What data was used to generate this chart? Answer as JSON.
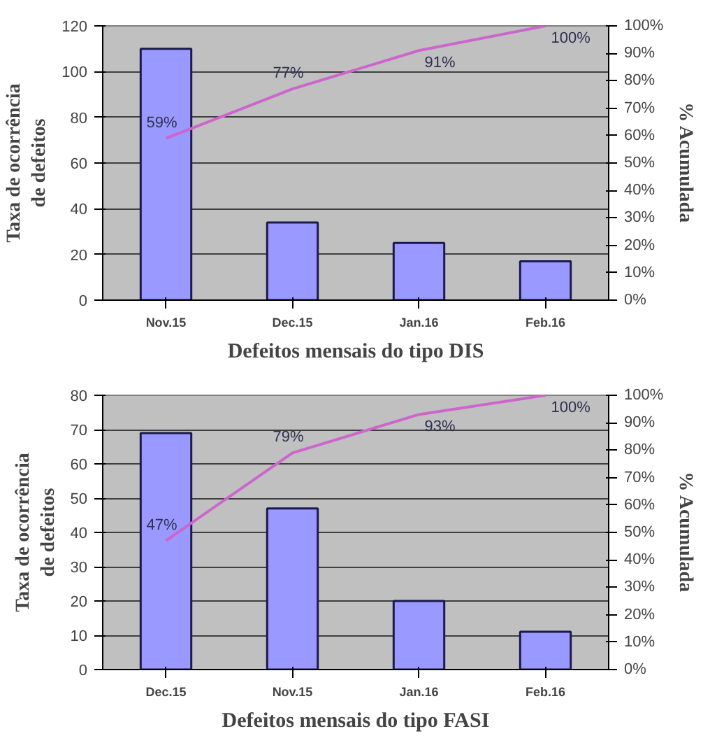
{
  "chart_data": [
    {
      "type": "bar",
      "categories": [
        "Nov.15",
        "Dec.15",
        "Jan.16",
        "Feb.16"
      ],
      "xlabel": "Defeitos mensais do tipo DIS",
      "ylabel": "Taxa de ocorrência\nde defeitos",
      "y2label": "% Acumulada",
      "ylim": [
        0,
        120
      ],
      "yticks": [
        0,
        20,
        40,
        60,
        80,
        100,
        120
      ],
      "y2lim": [
        0,
        100
      ],
      "y2ticks": [
        {
          "value": 0,
          "label": "0%"
        },
        {
          "value": 10,
          "label": "10%"
        },
        {
          "value": 20,
          "label": "20%"
        },
        {
          "value": 30,
          "label": "30%"
        },
        {
          "value": 40,
          "label": "40%"
        },
        {
          "value": 50,
          "label": "50%"
        },
        {
          "value": 60,
          "label": "60%"
        },
        {
          "value": 70,
          "label": "70%"
        },
        {
          "value": 80,
          "label": "80%"
        },
        {
          "value": 90,
          "label": "90%"
        },
        {
          "value": 100,
          "label": "100%"
        }
      ],
      "grid": "y",
      "series": [
        {
          "color": "#9999ff",
          "values": [
            110,
            34,
            25,
            17
          ]
        },
        {
          "type": "line",
          "axis": "y2",
          "color": "#cc66cc",
          "values": [
            59,
            77,
            91,
            100
          ],
          "value_labels": [
            "59%",
            "77%",
            "91%",
            "100%"
          ]
        }
      ]
    },
    {
      "type": "bar",
      "categories": [
        "Dec.15",
        "Nov.15",
        "Jan.16",
        "Feb.16"
      ],
      "xlabel": "Defeitos mensais do tipo FASI",
      "ylabel": "Taxa de ocorrência\nde defeitos",
      "y2label": "% Acumulada",
      "ylim": [
        0,
        80
      ],
      "yticks": [
        0,
        10,
        20,
        30,
        40,
        50,
        60,
        70,
        80
      ],
      "y2lim": [
        0,
        100
      ],
      "y2ticks": [
        {
          "value": 0,
          "label": "0%"
        },
        {
          "value": 10,
          "label": "10%"
        },
        {
          "value": 20,
          "label": "20%"
        },
        {
          "value": 30,
          "label": "30%"
        },
        {
          "value": 40,
          "label": "40%"
        },
        {
          "value": 50,
          "label": "50%"
        },
        {
          "value": 60,
          "label": "60%"
        },
        {
          "value": 70,
          "label": "70%"
        },
        {
          "value": 80,
          "label": "80%"
        },
        {
          "value": 90,
          "label": "90%"
        },
        {
          "value": 100,
          "label": "100%"
        }
      ],
      "grid": "y",
      "series": [
        {
          "color": "#9999ff",
          "values": [
            69,
            47,
            20,
            11
          ]
        },
        {
          "type": "line",
          "axis": "y2",
          "color": "#cc66cc",
          "values": [
            47,
            79,
            93,
            100
          ],
          "value_labels": [
            "47%",
            "79%",
            "93%",
            "100%"
          ]
        }
      ]
    }
  ]
}
